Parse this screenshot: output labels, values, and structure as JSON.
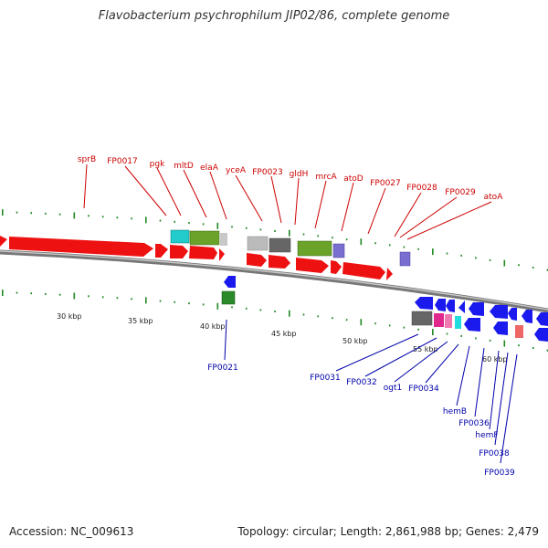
{
  "title": "Flavobacterium psychrophilum JIP02/86, complete genome",
  "accession_label": "Accession: NC_009613",
  "info_label": "Topology: circular; Length: 2,861,988 bp; Genes: 2,479",
  "colors": {
    "forward_gene": "#ee1111",
    "reverse_gene": "#1a1aee",
    "forward_label": "#cc0000",
    "reverse_label": "#0000aa",
    "tick": "#228822",
    "backbone": "#777777"
  },
  "scale_labels": [
    "30 kbp",
    "35 kbp",
    "40 kbp",
    "45 kbp",
    "50 kbp",
    "55 kbp",
    "60 kbp"
  ],
  "forward_labels": [
    "sprB",
    "FP0017",
    "pgk",
    "mltD",
    "elaA",
    "yceA",
    "FP0023",
    "gldH",
    "mrcA",
    "atoD",
    "FP0027",
    "FP0028",
    "FP0029",
    "atoA"
  ],
  "reverse_labels": [
    "FP0021",
    "FP0031",
    "FP0032",
    "ogt1",
    "FP0034",
    "hemB",
    "FP0036",
    "hemF",
    "FP0038",
    "FP0039"
  ]
}
